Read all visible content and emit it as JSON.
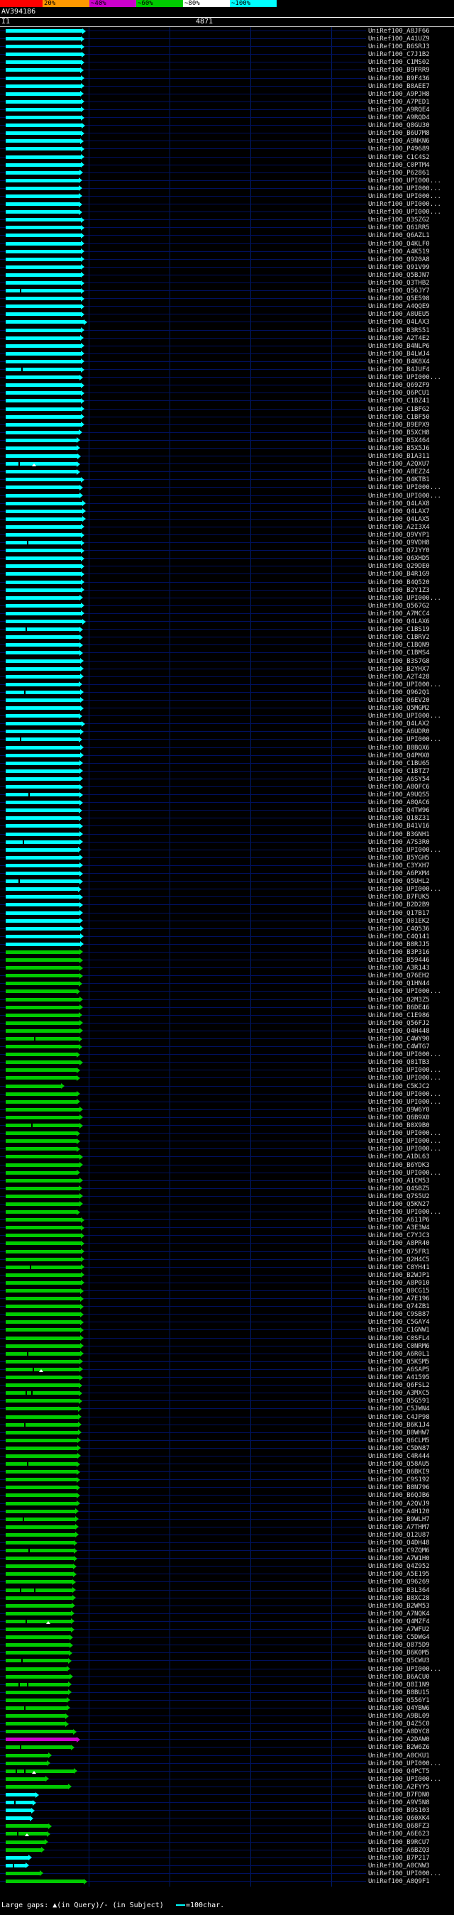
{
  "header": {
    "title": "AV394186",
    "query_label": "I1",
    "query_length": "4871"
  },
  "scale_bar": {
    "segments": [
      {
        "label": "",
        "color": "#ff0000"
      },
      {
        "label": "20%",
        "color": "#ff9900"
      },
      {
        "label": "~40%",
        "color": "#cc00cc"
      },
      {
        "label": "~60%",
        "color": "#00cc00"
      },
      {
        "label": "~80%",
        "color": "#ffffff"
      },
      {
        "label": "~100%",
        "color": "#00ffff"
      }
    ]
  },
  "legend": {
    "gaps_label": "Large gaps: ▲(in Query)/- (in Subject)",
    "scale_label": "=100char."
  },
  "chart_data": {
    "type": "bar",
    "orientation": "horizontal",
    "title": "AV394186",
    "query": {
      "name": "I1",
      "length_chars": 4871
    },
    "id_prefix": "UniRef100_",
    "color_key": {
      "c": "#00ffff",
      "g": "#00cc00",
      "m": "#cc00cc"
    },
    "color_meaning": {
      "c": "~100% identity",
      "g": "~60-80% identity",
      "m": "~40-60% identity"
    },
    "bar_unit": "px, approx 100 chars per 11 px; all hits start at query left end",
    "row_format": "[subject_id_suffix, bar_length_px, color_key, gap_tick_x[], query_gap_triangle_x[]]",
    "rows": [
      [
        "A8JF66",
        108,
        "c"
      ],
      [
        "A41UZ9",
        106,
        "c"
      ],
      [
        "B6SRJ3",
        106,
        "c"
      ],
      [
        "C7J1B2",
        107,
        "c"
      ],
      [
        "C1MS02",
        106,
        "c"
      ],
      [
        "B9FRR9",
        105,
        "c"
      ],
      [
        "B9F436",
        106,
        "c"
      ],
      [
        "B8AEE7",
        106,
        "c"
      ],
      [
        "A9PJH8",
        105,
        "c"
      ],
      [
        "A7PED1",
        106,
        "c"
      ],
      [
        "A9RQE4",
        106,
        "c"
      ],
      [
        "A9RQD4",
        106,
        "c"
      ],
      [
        "Q8GU30",
        107,
        "c"
      ],
      [
        "B6U7M8",
        106,
        "c"
      ],
      [
        "A9NKN6",
        105,
        "c"
      ],
      [
        "P49689",
        106,
        "c"
      ],
      [
        "C1C4S2",
        106,
        "c"
      ],
      [
        "C0PTM4",
        106,
        "c"
      ],
      [
        "P62861",
        104,
        "c"
      ],
      [
        "UPI000...",
        103,
        "c"
      ],
      [
        "UPI000...",
        103,
        "c"
      ],
      [
        "UPI000...",
        103,
        "c"
      ],
      [
        "UPI000...",
        103,
        "c"
      ],
      [
        "UPI000...",
        103,
        "c"
      ],
      [
        "Q3SZG2",
        106,
        "c"
      ],
      [
        "Q61RR5",
        106,
        "c"
      ],
      [
        "Q6AZL1",
        106,
        "c"
      ],
      [
        "Q4KLF0",
        106,
        "c"
      ],
      [
        "A4K519",
        106,
        "c"
      ],
      [
        "Q920A8",
        106,
        "c"
      ],
      [
        "Q91V99",
        106,
        "c"
      ],
      [
        "Q5BJN7",
        106,
        "c"
      ],
      [
        "Q3THB2",
        106,
        "c"
      ],
      [
        "Q56JY7",
        106,
        "c",
        [
          20
        ]
      ],
      [
        "Q5E598",
        106,
        "c"
      ],
      [
        "A4QQE9",
        106,
        "c"
      ],
      [
        "A8UEU5",
        106,
        "c"
      ],
      [
        "Q4LAX3",
        110,
        "c"
      ],
      [
        "B3RS51",
        106,
        "c"
      ],
      [
        "A2T4E2",
        105,
        "c"
      ],
      [
        "B4NLP6",
        106,
        "c"
      ],
      [
        "B4LWJ4",
        106,
        "c"
      ],
      [
        "B4K8X4",
        106,
        "c"
      ],
      [
        "B4JUF4",
        106,
        "c",
        [
          22
        ]
      ],
      [
        "UPI000...",
        104,
        "c"
      ],
      [
        "Q69ZF9",
        106,
        "c"
      ],
      [
        "Q6PCU1",
        106,
        "c"
      ],
      [
        "C1BZ41",
        106,
        "c"
      ],
      [
        "C1BFG2",
        106,
        "c"
      ],
      [
        "C1BF50",
        106,
        "c"
      ],
      [
        "B9EPX9",
        106,
        "c"
      ],
      [
        "B5XCH8",
        103,
        "c"
      ],
      [
        "B5X464",
        100,
        "c"
      ],
      [
        "B5X5J6",
        100,
        "c"
      ],
      [
        "B1A311",
        101,
        "c"
      ],
      [
        "A2QXU7",
        100,
        "c",
        [
          18
        ],
        [
          40
        ]
      ],
      [
        "A0EZ24",
        100,
        "c"
      ],
      [
        "Q4KTB1",
        106,
        "c"
      ],
      [
        "UPI000...",
        104,
        "c"
      ],
      [
        "UPI000...",
        104,
        "c"
      ],
      [
        "Q4LAX8",
        108,
        "c"
      ],
      [
        "Q4LAX7",
        108,
        "c"
      ],
      [
        "Q4LAX5",
        108,
        "c"
      ],
      [
        "A2I3X4",
        106,
        "c"
      ],
      [
        "Q9VYP1",
        106,
        "c"
      ],
      [
        "Q9VDH8",
        106,
        "c",
        [
          30
        ]
      ],
      [
        "Q7JYY0",
        106,
        "c"
      ],
      [
        "Q6XHD5",
        106,
        "c"
      ],
      [
        "Q29DE0",
        106,
        "c"
      ],
      [
        "B4R1G9",
        106,
        "c"
      ],
      [
        "B4Q520",
        106,
        "c"
      ],
      [
        "B2Y1Z3",
        106,
        "c"
      ],
      [
        "UPI000...",
        104,
        "c"
      ],
      [
        "Q567G2",
        106,
        "c"
      ],
      [
        "A7MCC4",
        106,
        "c"
      ],
      [
        "Q4LAX6",
        108,
        "c"
      ],
      [
        "C1BS19",
        104,
        "c",
        [
          28
        ]
      ],
      [
        "C1BRV2",
        104,
        "c"
      ],
      [
        "C1BQN9",
        104,
        "c"
      ],
      [
        "C1BMS4",
        104,
        "c"
      ],
      [
        "B3S7G8",
        105,
        "c"
      ],
      [
        "B2YHX7",
        105,
        "c"
      ],
      [
        "A2T428",
        105,
        "c"
      ],
      [
        "UPI000...",
        103,
        "c"
      ],
      [
        "Q962Q1",
        105,
        "c",
        [
          26
        ]
      ],
      [
        "Q6EV20",
        105,
        "c"
      ],
      [
        "Q5MGM2",
        105,
        "c"
      ],
      [
        "UPI000...",
        103,
        "c"
      ],
      [
        "Q4LAX2",
        107,
        "c"
      ],
      [
        "A6UDR0",
        105,
        "c"
      ],
      [
        "UPI000...",
        103,
        "c",
        [
          20
        ]
      ],
      [
        "B8BQX6",
        105,
        "c"
      ],
      [
        "Q4PMX0",
        105,
        "c"
      ],
      [
        "C1BU65",
        104,
        "c"
      ],
      [
        "C1BTZ7",
        104,
        "c"
      ],
      [
        "A6SY54",
        104,
        "c"
      ],
      [
        "A8QFC6",
        104,
        "c"
      ],
      [
        "A9UQS5",
        104,
        "c",
        [
          32
        ]
      ],
      [
        "A8QAC6",
        104,
        "c"
      ],
      [
        "Q4TW96",
        103,
        "c"
      ],
      [
        "Q18Z31",
        103,
        "c"
      ],
      [
        "B41V16",
        104,
        "c"
      ],
      [
        "B3GNH1",
        104,
        "c"
      ],
      [
        "A7S3R0",
        104,
        "c",
        [
          24
        ]
      ],
      [
        "UPI000...",
        102,
        "c"
      ],
      [
        "B5YGH5",
        104,
        "c"
      ],
      [
        "C3YXH7",
        104,
        "c"
      ],
      [
        "A6PXM4",
        104,
        "c"
      ],
      [
        "Q5UHL2",
        104,
        "c",
        [
          18
        ]
      ],
      [
        "UPI000...",
        102,
        "c"
      ],
      [
        "B7FUK5",
        104,
        "c"
      ],
      [
        "B2D2B9",
        104,
        "c"
      ],
      [
        "Q17B17",
        104,
        "c"
      ],
      [
        "Q01EK2",
        104,
        "c"
      ],
      [
        "C4Q536",
        105,
        "c"
      ],
      [
        "C4Q141",
        105,
        "c"
      ],
      [
        "B8RJJ5",
        105,
        "c"
      ],
      [
        "B3P316",
        104,
        "g"
      ],
      [
        "B59446",
        104,
        "g"
      ],
      [
        "A3R143",
        104,
        "g"
      ],
      [
        "Q76EH2",
        104,
        "g"
      ],
      [
        "Q1HN44",
        103,
        "g"
      ],
      [
        "UPI000...",
        100,
        "g"
      ],
      [
        "Q2M3Z5",
        104,
        "g"
      ],
      [
        "B6DE46",
        104,
        "g"
      ],
      [
        "C1E986",
        103,
        "g"
      ],
      [
        "Q56FJ2",
        104,
        "g"
      ],
      [
        "Q4H448",
        104,
        "g"
      ],
      [
        "C4WY90",
        103,
        "g",
        [
          40
        ]
      ],
      [
        "C4WTG7",
        103,
        "g"
      ],
      [
        "UPI000...",
        100,
        "g"
      ],
      [
        "Q81TB3",
        104,
        "g"
      ],
      [
        "UPI000...",
        100,
        "g"
      ],
      [
        "UPI000...",
        100,
        "g"
      ],
      [
        "C5KJC2",
        78,
        "g"
      ],
      [
        "UPI000...",
        100,
        "g"
      ],
      [
        "UPI000...",
        100,
        "g"
      ],
      [
        "Q9W6Y0",
        104,
        "g"
      ],
      [
        "Q6B9X0",
        104,
        "g"
      ],
      [
        "B0X9B0",
        104,
        "g",
        [
          36
        ]
      ],
      [
        "UPI000...",
        100,
        "g"
      ],
      [
        "UPI000...",
        100,
        "g"
      ],
      [
        "UPI000...",
        100,
        "g"
      ],
      [
        "A1DL63",
        104,
        "g"
      ],
      [
        "B6YDK3",
        104,
        "g"
      ],
      [
        "UPI000...",
        100,
        "g"
      ],
      [
        "A1CM53",
        104,
        "g"
      ],
      [
        "Q4SBZ5",
        103,
        "g"
      ],
      [
        "Q7S5U2",
        104,
        "g"
      ],
      [
        "Q5KN27",
        104,
        "g"
      ],
      [
        "UPI000...",
        100,
        "g"
      ],
      [
        "A611P6",
        106,
        "g"
      ],
      [
        "A3E3W4",
        106,
        "g"
      ],
      [
        "C7YJC3",
        106,
        "g"
      ],
      [
        "A8PR40",
        106,
        "g"
      ],
      [
        "Q75FR1",
        106,
        "g"
      ],
      [
        "Q2H4C5",
        106,
        "g"
      ],
      [
        "C8YH41",
        106,
        "g",
        [
          34
        ]
      ],
      [
        "B2WJP1",
        106,
        "g"
      ],
      [
        "A8P010",
        106,
        "g"
      ],
      [
        "Q0CG15",
        105,
        "g"
      ],
      [
        "A7E196",
        105,
        "g"
      ],
      [
        "Q74ZB1",
        105,
        "g"
      ],
      [
        "C9SB87",
        105,
        "g"
      ],
      [
        "C5GAY4",
        105,
        "g"
      ],
      [
        "C1GNW1",
        105,
        "g"
      ],
      [
        "C0SFL4",
        105,
        "g"
      ],
      [
        "C0NRM6",
        105,
        "g"
      ],
      [
        "A6R0L1",
        105,
        "g",
        [
          30
        ]
      ],
      [
        "Q5KSM5",
        104,
        "g"
      ],
      [
        "A6SAP5",
        104,
        "g",
        [
          38
        ],
        [
          50
        ]
      ],
      [
        "A41595",
        104,
        "g"
      ],
      [
        "Q6FSL2",
        103,
        "g"
      ],
      [
        "A3MXC5",
        103,
        "g",
        [
          28,
          36
        ]
      ],
      [
        "Q5G591",
        103,
        "g"
      ],
      [
        "C5JWN4",
        102,
        "g"
      ],
      [
        "C4JP98",
        102,
        "g"
      ],
      [
        "B6K1J4",
        102,
        "g",
        [
          26
        ]
      ],
      [
        "B0WHW7",
        102,
        "g"
      ],
      [
        "Q6CLM5",
        101,
        "g"
      ],
      [
        "C5DN87",
        101,
        "g"
      ],
      [
        "C4R444",
        101,
        "g"
      ],
      [
        "Q58AU5",
        100,
        "g",
        [
          30
        ]
      ],
      [
        "Q6BKI9",
        100,
        "g"
      ],
      [
        "C9S192",
        100,
        "g"
      ],
      [
        "B8N796",
        100,
        "g"
      ],
      [
        "B6QJB6",
        100,
        "g"
      ],
      [
        "A2QVJ9",
        100,
        "g"
      ],
      [
        "A4H120",
        98,
        "g"
      ],
      [
        "B9WLH7",
        98,
        "g",
        [
          24
        ]
      ],
      [
        "A7THM7",
        98,
        "g"
      ],
      [
        "Q12U87",
        98,
        "g"
      ],
      [
        "Q4DH48",
        96,
        "g"
      ],
      [
        "C9ZQM6",
        96,
        "g",
        [
          32
        ]
      ],
      [
        "A7W1H0",
        96,
        "g"
      ],
      [
        "Q4Z952",
        95,
        "g"
      ],
      [
        "A5E195",
        95,
        "g"
      ],
      [
        "Q96269",
        94,
        "g"
      ],
      [
        "B3L364",
        94,
        "g",
        [
          20,
          40
        ]
      ],
      [
        "B8XC28",
        94,
        "g"
      ],
      [
        "B2WM53",
        93,
        "g"
      ],
      [
        "A7NQK4",
        92,
        "g"
      ],
      [
        "Q4MZF4",
        92,
        "g",
        [
          28
        ],
        [
          60
        ]
      ],
      [
        "A7WFU2",
        92,
        "g"
      ],
      [
        "C5DWG4",
        90,
        "g"
      ],
      [
        "Q875D9",
        90,
        "g"
      ],
      [
        "B6K0M5",
        89,
        "g"
      ],
      [
        "Q5CWU3",
        88,
        "g",
        [
          22
        ]
      ],
      [
        "UPI000...",
        86,
        "g"
      ],
      [
        "B6ACU0",
        90,
        "g"
      ],
      [
        "Q8I1N9",
        88,
        "g",
        [
          18,
          30
        ]
      ],
      [
        "B8BU15",
        88,
        "g"
      ],
      [
        "Q556Y1",
        86,
        "g"
      ],
      [
        "Q4YBW6",
        86,
        "g",
        [
          26
        ]
      ],
      [
        "A9BL09",
        84,
        "g"
      ],
      [
        "Q4Z5C0",
        84,
        "g"
      ],
      [
        "A0DYC8",
        95,
        "g"
      ],
      [
        "A2DAW0",
        100,
        "m"
      ],
      [
        "B2W6Z6",
        92,
        "g",
        [
          20
        ]
      ],
      [
        "A0CKU1",
        60,
        "g"
      ],
      [
        "UPI000...",
        58,
        "g"
      ],
      [
        "Q4PCT5",
        96,
        "g",
        [
          14,
          26
        ],
        [
          40
        ]
      ],
      [
        "UPI000...",
        56,
        "g"
      ],
      [
        "A2FYY5",
        88,
        "g"
      ],
      [
        "B7FDN0",
        42,
        "c"
      ],
      [
        "A9V5N8",
        38,
        "c",
        [
          12
        ]
      ],
      [
        "B9S103",
        36,
        "c"
      ],
      [
        "Q60XK4",
        34,
        "c"
      ],
      [
        "Q68FZ3",
        60,
        "g"
      ],
      [
        "A6E623",
        58,
        "g",
        [
          16
        ],
        [
          30
        ]
      ],
      [
        "B9RCU7",
        55,
        "g"
      ],
      [
        "A6BZQ3",
        50,
        "g"
      ],
      [
        "B7P217",
        32,
        "c"
      ],
      [
        "A0CNW3",
        28,
        "c",
        [
          10
        ]
      ],
      [
        "UPI000...",
        48,
        "g"
      ],
      [
        "A8Q9F1",
        110,
        "g"
      ]
    ]
  }
}
